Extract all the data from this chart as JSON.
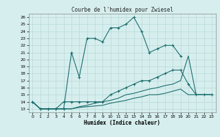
{
  "title": "Courbe de l'humidex pour Zwiesel",
  "xlabel": "Humidex (Indice chaleur)",
  "bg_color": "#d6eeee",
  "grid_color": "#b8d8d8",
  "line_color": "#1a6b6b",
  "xlim": [
    -0.5,
    23.5
  ],
  "ylim": [
    12.5,
    26.5
  ],
  "xticks": [
    0,
    1,
    2,
    3,
    4,
    5,
    6,
    7,
    8,
    9,
    10,
    11,
    12,
    13,
    14,
    15,
    16,
    17,
    18,
    19,
    20,
    21,
    22,
    23
  ],
  "yticks": [
    13,
    14,
    15,
    16,
    17,
    18,
    19,
    20,
    21,
    22,
    23,
    24,
    25,
    26
  ],
  "series": [
    {
      "x": [
        0,
        1,
        2,
        3,
        4,
        5,
        6,
        7,
        8,
        9,
        10,
        11,
        12,
        13,
        14,
        15,
        16,
        17,
        18,
        19
      ],
      "y": [
        14,
        13,
        13,
        13,
        13,
        21,
        17.5,
        23,
        23,
        22.5,
        24.5,
        24.5,
        25,
        26,
        24,
        21,
        21.5,
        22,
        22,
        20.5
      ],
      "marker": true
    },
    {
      "x": [
        0,
        1,
        2,
        3,
        4,
        5,
        6,
        7,
        8,
        9,
        10,
        11,
        12,
        13,
        14,
        15,
        16,
        17,
        18,
        19,
        20,
        21,
        22,
        23
      ],
      "y": [
        14,
        13,
        13,
        13,
        14,
        14,
        14,
        14,
        14,
        14,
        15,
        15.5,
        16,
        16.5,
        17,
        17,
        17.5,
        18,
        18.5,
        18.5,
        16.5,
        15,
        15,
        15
      ],
      "marker": true
    },
    {
      "x": [
        0,
        1,
        2,
        3,
        4,
        5,
        6,
        7,
        8,
        9,
        10,
        11,
        12,
        13,
        14,
        15,
        16,
        17,
        18,
        19,
        20,
        21,
        22,
        23
      ],
      "y": [
        14,
        13,
        13,
        13,
        13,
        13,
        13.3,
        13.5,
        13.8,
        14,
        14.2,
        14.5,
        15,
        15.2,
        15.5,
        15.8,
        16,
        16.3,
        16.5,
        17,
        20.5,
        15,
        15,
        15
      ],
      "marker": false
    },
    {
      "x": [
        0,
        1,
        2,
        3,
        4,
        5,
        6,
        7,
        8,
        9,
        10,
        11,
        12,
        13,
        14,
        15,
        16,
        17,
        18,
        19,
        20,
        21,
        22,
        23
      ],
      "y": [
        14,
        13,
        13,
        13,
        13,
        13,
        13.2,
        13.3,
        13.4,
        13.5,
        13.8,
        14,
        14.2,
        14.5,
        14.7,
        15,
        15,
        15.2,
        15.5,
        15.8,
        15,
        15,
        15,
        15
      ],
      "marker": false
    }
  ]
}
